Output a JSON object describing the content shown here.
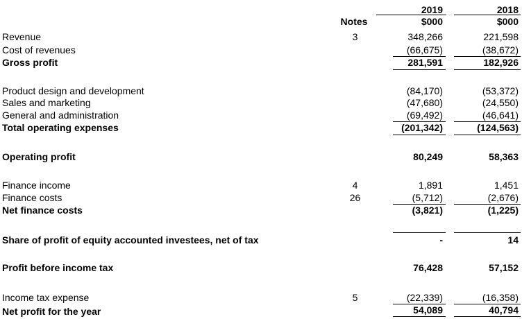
{
  "header": {
    "notes_label": "Notes",
    "year_2019": "2019",
    "year_2018": "2018",
    "unit_2019": "$000",
    "unit_2018": "$000"
  },
  "rows": {
    "revenue": {
      "label": "Revenue",
      "note": "3",
      "v2019": "348,266",
      "v2018": "221,598"
    },
    "cost_of_revenues": {
      "label": "Cost of revenues",
      "v2019": "(66,675)",
      "v2018": "(38,672)"
    },
    "gross_profit": {
      "label": "Gross profit",
      "v2019": "281,591",
      "v2018": "182,926"
    },
    "product_design": {
      "label": "Product design and development",
      "v2019": "(84,170)",
      "v2018": "(53,372)"
    },
    "sales_marketing": {
      "label": "Sales and marketing",
      "v2019": "(47,680)",
      "v2018": "(24,550)"
    },
    "general_admin": {
      "label": "General and administration",
      "v2019": "(69,492)",
      "v2018": "(46,641)"
    },
    "total_opex": {
      "label": "Total operating expenses",
      "v2019": "(201,342)",
      "v2018": "(124,563)"
    },
    "operating_profit": {
      "label": "Operating profit",
      "v2019": "80,249",
      "v2018": "58,363"
    },
    "finance_income": {
      "label": "Finance income",
      "note": "4",
      "v2019": "1,891",
      "v2018": "1,451"
    },
    "finance_costs": {
      "label": "Finance costs",
      "note": "26",
      "v2019": "(5,712)",
      "v2018": "(2,676)"
    },
    "net_finance_costs": {
      "label": "Net finance costs",
      "v2019": "(3,821)",
      "v2018": "(1,225)"
    },
    "share_of_profit": {
      "label": "Share of profit of equity accounted investees, net of tax",
      "v2019": "-",
      "v2018": "14"
    },
    "profit_before_tax": {
      "label": "Profit before income tax",
      "v2019": "76,428",
      "v2018": "57,152"
    },
    "income_tax": {
      "label": "Income tax expense",
      "note": "5",
      "v2019": "(22,339)",
      "v2018": "(16,358)"
    },
    "net_profit": {
      "label": "Net profit for the year",
      "v2019": "54,089",
      "v2018": "40,794"
    }
  }
}
